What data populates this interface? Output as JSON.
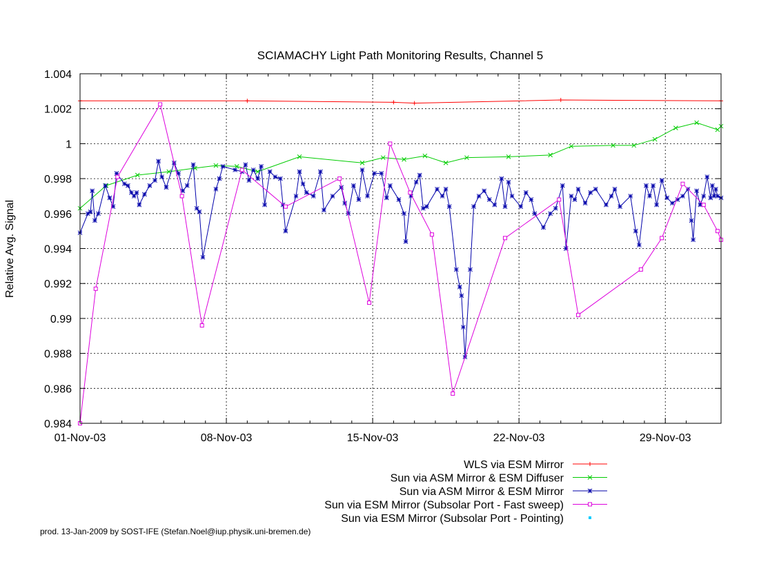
{
  "chart_data": {
    "type": "line",
    "title": "SCIAMACHY Light Path Monitoring Results, Channel 5",
    "xlabel": "",
    "ylabel": "Relative Avg. Signal",
    "x_unit": "date",
    "xlim": [
      "2003-11-01",
      "2003-12-01T16:00"
    ],
    "ylim": [
      0.984,
      1.004
    ],
    "x_ticks": [
      "01-Nov-03",
      "08-Nov-03",
      "15-Nov-03",
      "22-Nov-03",
      "29-Nov-03"
    ],
    "y_ticks": [
      "0.984",
      "0.986",
      "0.988",
      "0.99",
      "0.992",
      "0.994",
      "0.996",
      "0.998",
      "1",
      "1.002",
      "1.004"
    ],
    "grid": true,
    "legend_position": "bottom-right",
    "footer": "prod. 13-Jan-2009 by SOST-IFE (Stefan.Noel@iup.physik.uni-bremen.de)",
    "series": [
      {
        "name": "WLS via ESM Mirror",
        "color": "#ff0000",
        "marker": "plus",
        "points": [
          [
            "2003-11-01",
            1.00245
          ],
          [
            "2003-11-09",
            1.00245
          ],
          [
            "2003-11-16",
            1.00237
          ],
          [
            "2003-11-17",
            1.00232
          ],
          [
            "2003-11-24",
            1.0025
          ],
          [
            "2003-12-01T16:00",
            1.00245
          ]
        ]
      },
      {
        "name": "Sun via ASM Mirror & ESM Diffuser",
        "color": "#00cc00",
        "marker": "x",
        "points": [
          [
            "2003-11-01",
            0.9963
          ],
          [
            "2003-11-02T06:00",
            0.9976
          ],
          [
            "2003-11-03T18:00",
            0.9982
          ],
          [
            "2003-11-05T06:00",
            0.9984
          ],
          [
            "2003-11-06T12:00",
            0.9986
          ],
          [
            "2003-11-07T12:00",
            0.99875
          ],
          [
            "2003-11-08T12:00",
            0.9987
          ],
          [
            "2003-11-09T12:00",
            0.9984
          ],
          [
            "2003-11-11T12:00",
            0.99925
          ],
          [
            "2003-11-14T12:00",
            0.9989
          ],
          [
            "2003-11-15T12:00",
            0.9992
          ],
          [
            "2003-11-16T12:00",
            0.9991
          ],
          [
            "2003-11-17T12:00",
            0.9993
          ],
          [
            "2003-11-18T12:00",
            0.9989
          ],
          [
            "2003-11-19T12:00",
            0.9992
          ],
          [
            "2003-11-21T12:00",
            0.99925
          ],
          [
            "2003-11-23T12:00",
            0.99935
          ],
          [
            "2003-11-24T12:00",
            0.99985
          ],
          [
            "2003-11-26T12:00",
            0.9999
          ],
          [
            "2003-11-27T12:00",
            0.9999
          ],
          [
            "2003-11-28T12:00",
            1.00025
          ],
          [
            "2003-11-29T12:00",
            1.0009
          ],
          [
            "2003-11-30T12:00",
            1.0012
          ],
          [
            "2003-12-01T12:00",
            1.0008
          ],
          [
            "2003-12-01T16:00",
            1.001
          ]
        ]
      },
      {
        "name": "Sun via ASM Mirror & ESM Mirror",
        "color": "#0000aa",
        "marker": "star",
        "points": [
          [
            "2003-11-01",
            0.9949
          ],
          [
            "2003-11-01T09:00",
            0.996
          ],
          [
            "2003-11-01T12:00",
            0.9961
          ],
          [
            "2003-11-01T14:00",
            0.9973
          ],
          [
            "2003-11-01T17:00",
            0.9956
          ],
          [
            "2003-11-01T21:00",
            0.996
          ],
          [
            "2003-11-02T05:00",
            0.9976
          ],
          [
            "2003-11-02T10:00",
            0.9969
          ],
          [
            "2003-11-02T14:00",
            0.9964
          ],
          [
            "2003-11-02T18:00",
            0.9983
          ],
          [
            "2003-11-03T03:00",
            0.9977
          ],
          [
            "2003-11-03T07:00",
            0.9976
          ],
          [
            "2003-11-03T11:00",
            0.9972
          ],
          [
            "2003-11-03T14:00",
            0.997
          ],
          [
            "2003-11-03T17:00",
            0.9972
          ],
          [
            "2003-11-03T20:00",
            0.9965
          ],
          [
            "2003-11-04T02:00",
            0.9971
          ],
          [
            "2003-11-04T08:00",
            0.9976
          ],
          [
            "2003-11-04T14:00",
            0.9979
          ],
          [
            "2003-11-04T18:00",
            0.999
          ],
          [
            "2003-11-04T22:00",
            0.9981
          ],
          [
            "2003-11-05T03:00",
            0.9975
          ],
          [
            "2003-11-05T12:00",
            0.9989
          ],
          [
            "2003-11-05T17:00",
            0.9983
          ],
          [
            "2003-11-05T22:00",
            0.9973
          ],
          [
            "2003-11-06T03:00",
            0.9976
          ],
          [
            "2003-11-06T10:00",
            0.9988
          ],
          [
            "2003-11-06T14:00",
            0.9963
          ],
          [
            "2003-11-06T17:00",
            0.9961
          ],
          [
            "2003-11-06T21:00",
            0.9935
          ],
          [
            "2003-11-07T12:00",
            0.9974
          ],
          [
            "2003-11-07T16:00",
            0.998
          ],
          [
            "2003-11-07T20:00",
            0.9987
          ],
          [
            "2003-11-08T10:00",
            0.9985
          ],
          [
            "2003-11-08T18:00",
            0.9984
          ],
          [
            "2003-11-08T22:00",
            0.9988
          ],
          [
            "2003-11-09T02:00",
            0.9979
          ],
          [
            "2003-11-09T07:00",
            0.9985
          ],
          [
            "2003-11-09T12:00",
            0.998
          ],
          [
            "2003-11-09T16:00",
            0.9987
          ],
          [
            "2003-11-09T20:00",
            0.9965
          ],
          [
            "2003-11-10T02:00",
            0.9984
          ],
          [
            "2003-11-10T08:00",
            0.9981
          ],
          [
            "2003-11-10T14:00",
            0.998
          ],
          [
            "2003-11-10T17:00",
            0.9965
          ],
          [
            "2003-11-10T20:00",
            0.995
          ],
          [
            "2003-11-11T08:00",
            0.997
          ],
          [
            "2003-11-11T12:00",
            0.9984
          ],
          [
            "2003-11-11T16:00",
            0.9977
          ],
          [
            "2003-11-11T20:00",
            0.9972
          ],
          [
            "2003-11-12T04:00",
            0.997
          ],
          [
            "2003-11-12T12:00",
            0.9984
          ],
          [
            "2003-11-12T16:00",
            0.9962
          ],
          [
            "2003-11-13T02:00",
            0.997
          ],
          [
            "2003-11-13T12:00",
            0.9975
          ],
          [
            "2003-11-13T16:00",
            0.9966
          ],
          [
            "2003-11-13T20:00",
            0.996
          ],
          [
            "2003-11-14T02:00",
            0.9976
          ],
          [
            "2003-11-14T08:00",
            0.9968
          ],
          [
            "2003-11-14T12:00",
            0.9985
          ],
          [
            "2003-11-14T18:00",
            0.997
          ],
          [
            "2003-11-15T02:00",
            0.9983
          ],
          [
            "2003-11-15T10:00",
            0.9983
          ],
          [
            "2003-11-15T16:00",
            0.9969
          ],
          [
            "2003-11-15T20:00",
            0.9976
          ],
          [
            "2003-11-16T06:00",
            0.9968
          ],
          [
            "2003-11-16T12:00",
            0.996
          ],
          [
            "2003-11-16T14:00",
            0.9944
          ],
          [
            "2003-11-16T20:00",
            0.997
          ],
          [
            "2003-11-17T02:00",
            0.9978
          ],
          [
            "2003-11-17T06:00",
            0.9982
          ],
          [
            "2003-11-17T10:00",
            0.9963
          ],
          [
            "2003-11-17T14:00",
            0.9964
          ],
          [
            "2003-11-18T02:00",
            0.9974
          ],
          [
            "2003-11-18T08:00",
            0.997
          ],
          [
            "2003-11-18T12:00",
            0.9974
          ],
          [
            "2003-11-18T16:00",
            0.9964
          ],
          [
            "2003-11-19T00:00",
            0.9928
          ],
          [
            "2003-11-19T04:00",
            0.9918
          ],
          [
            "2003-11-19T06:00",
            0.9913
          ],
          [
            "2003-11-19T08:00",
            0.9895
          ],
          [
            "2003-11-19T10:00",
            0.9878
          ],
          [
            "2003-11-19T16:00",
            0.9928
          ],
          [
            "2003-11-19T20:00",
            0.9964
          ],
          [
            "2003-11-20T02:00",
            0.997
          ],
          [
            "2003-11-20T08:00",
            0.9973
          ],
          [
            "2003-11-20T14:00",
            0.9968
          ],
          [
            "2003-11-20T20:00",
            0.9965
          ],
          [
            "2003-11-21T04:00",
            0.998
          ],
          [
            "2003-11-21T08:00",
            0.9964
          ],
          [
            "2003-11-21T12:00",
            0.9978
          ],
          [
            "2003-11-21T16:00",
            0.997
          ],
          [
            "2003-11-22T02:00",
            0.9964
          ],
          [
            "2003-11-22T08:00",
            0.9972
          ],
          [
            "2003-11-22T14:00",
            0.9968
          ],
          [
            "2003-11-22T18:00",
            0.996
          ],
          [
            "2003-11-23T04:00",
            0.9952
          ],
          [
            "2003-11-23T12:00",
            0.996
          ],
          [
            "2003-11-23T18:00",
            0.9963
          ],
          [
            "2003-11-24T02:00",
            0.9976
          ],
          [
            "2003-11-24T06:00",
            0.994
          ],
          [
            "2003-11-24T12:00",
            0.997
          ],
          [
            "2003-11-24T16:00",
            0.9968
          ],
          [
            "2003-11-24T20:00",
            0.9974
          ],
          [
            "2003-11-25T04:00",
            0.9966
          ],
          [
            "2003-11-25T10:00",
            0.9972
          ],
          [
            "2003-11-25T16:00",
            0.9974
          ],
          [
            "2003-11-26T04:00",
            0.9965
          ],
          [
            "2003-11-26T10:00",
            0.997
          ],
          [
            "2003-11-26T14:00",
            0.9974
          ],
          [
            "2003-11-26T20:00",
            0.9964
          ],
          [
            "2003-11-27T08:00",
            0.997
          ],
          [
            "2003-11-27T14:00",
            0.995
          ],
          [
            "2003-11-27T18:00",
            0.9942
          ],
          [
            "2003-11-28T02:00",
            0.9976
          ],
          [
            "2003-11-28T06:00",
            0.997
          ],
          [
            "2003-11-28T10:00",
            0.9976
          ],
          [
            "2003-11-28T14:00",
            0.9965
          ],
          [
            "2003-11-28T20:00",
            0.9979
          ],
          [
            "2003-11-29T02:00",
            0.9969
          ],
          [
            "2003-11-29T08:00",
            0.9966
          ],
          [
            "2003-11-29T14:00",
            0.9968
          ],
          [
            "2003-11-29T20:00",
            0.997
          ],
          [
            "2003-11-30T02:00",
            0.9974
          ],
          [
            "2003-11-30T06:00",
            0.9956
          ],
          [
            "2003-11-30T08:00",
            0.9945
          ],
          [
            "2003-11-30T12:00",
            0.9973
          ],
          [
            "2003-11-30T16:00",
            0.9965
          ],
          [
            "2003-11-30T20:00",
            0.997
          ],
          [
            "2003-12-01T00:00",
            0.9981
          ],
          [
            "2003-12-01T04:00",
            0.9969
          ],
          [
            "2003-12-01T06:00",
            0.9976
          ],
          [
            "2003-12-01T08:00",
            0.997
          ],
          [
            "2003-12-01T10:00",
            0.9974
          ],
          [
            "2003-12-01T12:00",
            0.997
          ],
          [
            "2003-12-01T16:00",
            0.9969
          ]
        ]
      },
      {
        "name": "Sun via ESM Mirror (Subsolar Port - Fast sweep)",
        "color": "#dd00dd",
        "marker": "square",
        "points": [
          [
            "2003-11-01",
            0.984
          ],
          [
            "2003-11-01T18:00",
            0.9917
          ],
          [
            "2003-11-02T19:00",
            0.9981
          ],
          [
            "2003-11-04T20:00",
            1.00225
          ],
          [
            "2003-11-05T21:00",
            0.997
          ],
          [
            "2003-11-06T20:00",
            0.9896
          ],
          [
            "2003-11-08T18:00",
            0.9985
          ],
          [
            "2003-11-10T20:00",
            0.9964
          ],
          [
            "2003-11-13T10:00",
            0.998
          ],
          [
            "2003-11-14T20:00",
            0.9909
          ],
          [
            "2003-11-15T20:00",
            1.0
          ],
          [
            "2003-11-16T19:00",
            0.9972
          ],
          [
            "2003-11-17T20:00",
            0.9948
          ],
          [
            "2003-11-18T20:00",
            0.9857
          ],
          [
            "2003-11-21T08:00",
            0.9946
          ],
          [
            "2003-11-23T22:00",
            0.9968
          ],
          [
            "2003-11-24T20:00",
            0.9902
          ],
          [
            "2003-11-27T20:00",
            0.9928
          ],
          [
            "2003-11-28T20:00",
            0.9946
          ],
          [
            "2003-11-29T20:00",
            0.9977
          ],
          [
            "2003-11-30T20:00",
            0.9965
          ],
          [
            "2003-12-01T12:00",
            0.995
          ],
          [
            "2003-12-01T16:00",
            0.9945
          ]
        ]
      },
      {
        "name": "Sun via ESM Mirror (Subsolar Port - Pointing)",
        "color": "#00ccff",
        "marker": "dot",
        "points": []
      }
    ]
  }
}
